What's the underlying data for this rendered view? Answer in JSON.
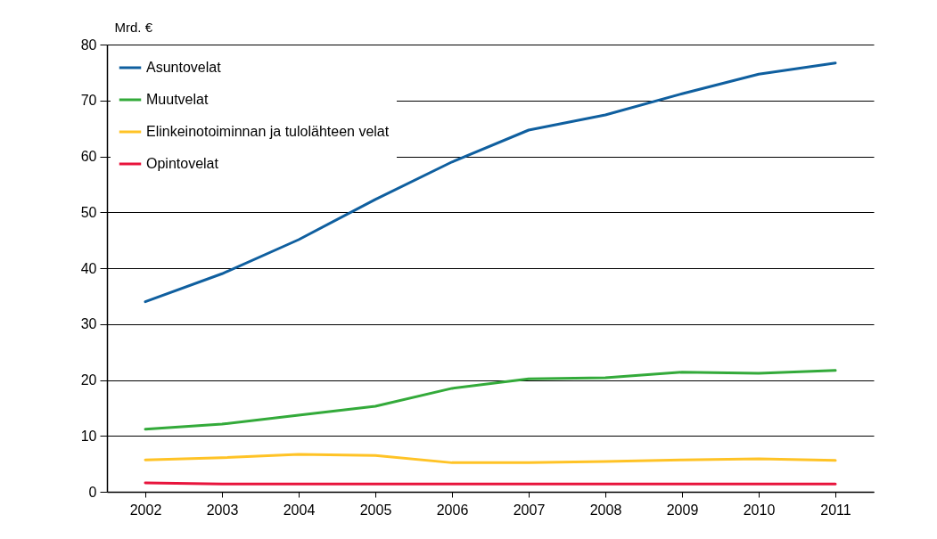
{
  "chart_data": {
    "type": "line",
    "ylabel": "Mrd. €",
    "categories": [
      "2002",
      "2003",
      "2004",
      "2005",
      "2006",
      "2007",
      "2008",
      "2009",
      "2010",
      "2011"
    ],
    "series": [
      {
        "name": "Asuntovelat",
        "color": "#0f5f9f",
        "values": [
          34,
          39,
          45.1,
          52.3,
          59,
          64.7,
          67.4,
          71.2,
          74.7,
          76.7
        ]
      },
      {
        "name": "Muutvelat",
        "color": "#33aa3a",
        "values": [
          11.2,
          12.1,
          13.7,
          15.3,
          18.5,
          20.2,
          20.4,
          21.4,
          21.2,
          21.7
        ]
      },
      {
        "name": "Elinkeinotoiminnan ja tulolähteen velat",
        "color": "#ffc326",
        "values": [
          5.7,
          6.1,
          6.7,
          6.5,
          5.2,
          5.2,
          5.4,
          5.7,
          5.9,
          5.6
        ]
      },
      {
        "name": "Opintovelat",
        "color": "#e8143c",
        "values": [
          1.6,
          1.4,
          1.4,
          1.4,
          1.4,
          1.4,
          1.4,
          1.4,
          1.4,
          1.4
        ]
      }
    ],
    "ylim": [
      0,
      80
    ],
    "yticks": [
      0,
      10,
      20,
      30,
      40,
      50,
      60,
      70,
      80
    ],
    "grid": "y",
    "legend": "top left",
    "line_style": "solid",
    "marker": "none"
  }
}
